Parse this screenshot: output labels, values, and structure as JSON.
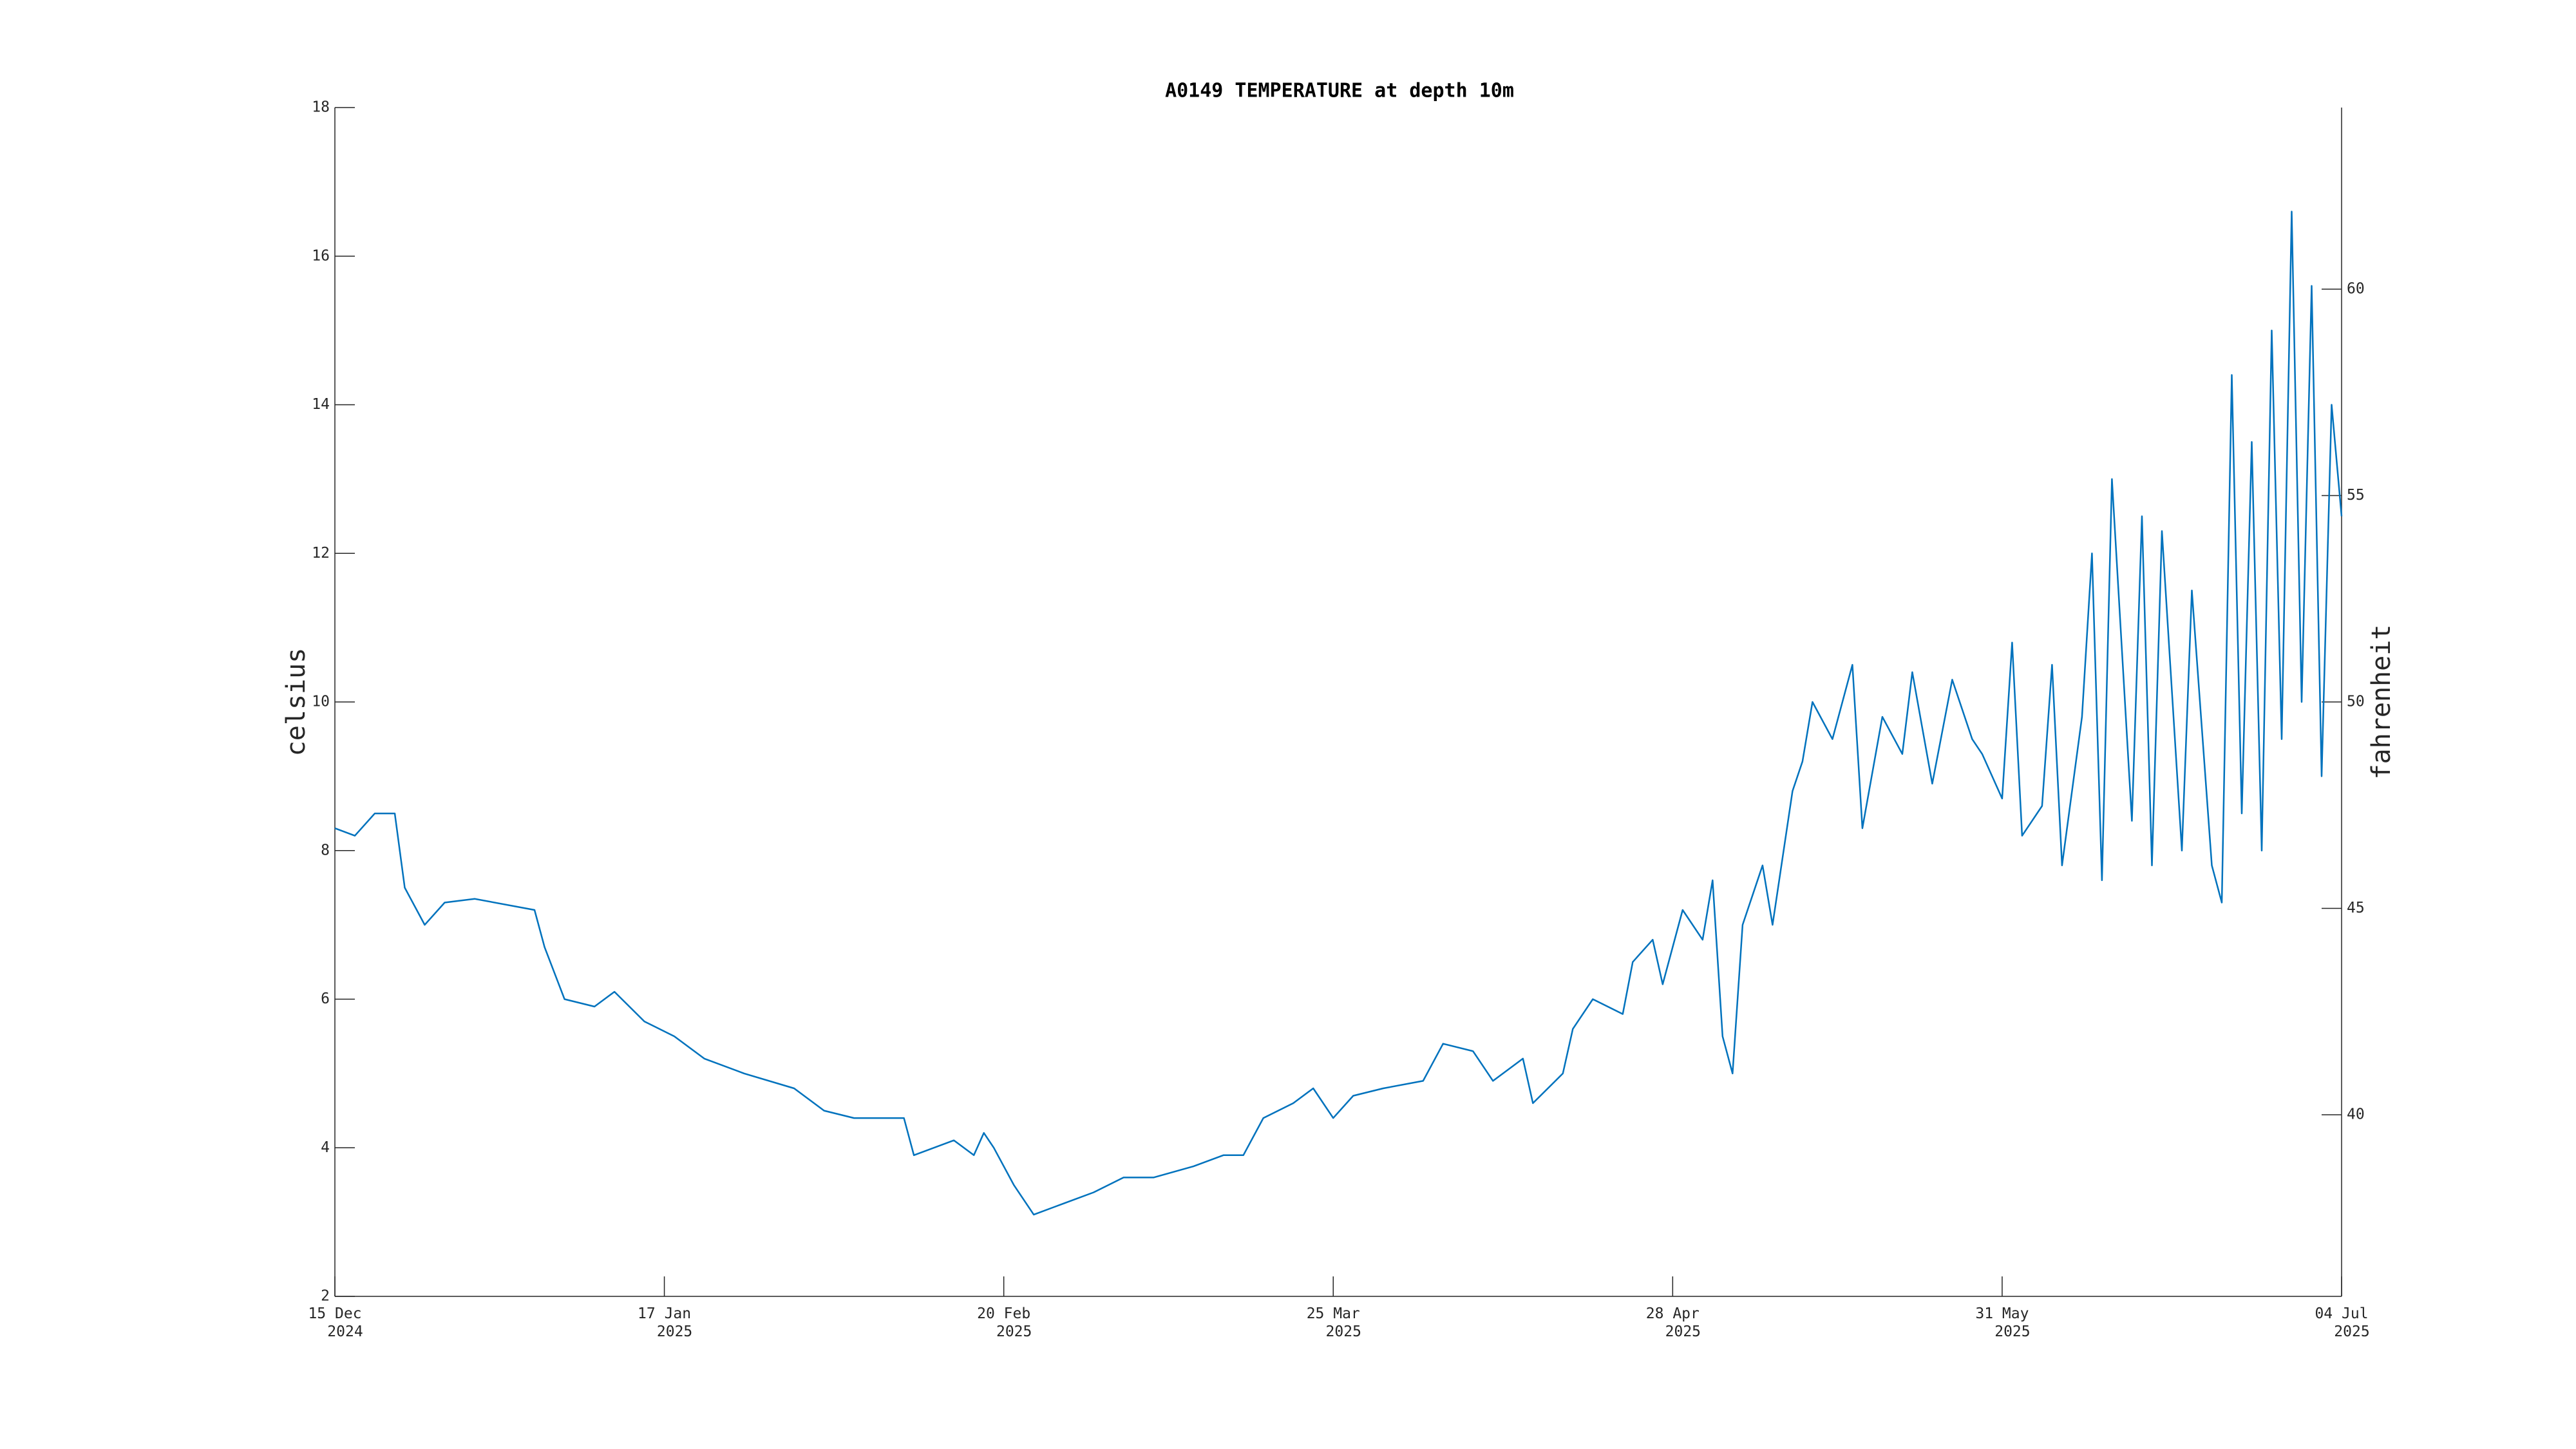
{
  "chart_data": {
    "type": "line",
    "title": "A0149 TEMPERATURE at depth 10m",
    "ylabel": "celsius",
    "y2label": "fahrenheit",
    "color": "#0072bd",
    "x": [
      "2024-12-15",
      "2024-12-17",
      "2024-12-19",
      "2024-12-21",
      "2024-12-22",
      "2024-12-24",
      "2024-12-26",
      "2024-12-29",
      "2025-01-04",
      "2025-01-05",
      "2025-01-07",
      "2025-01-10",
      "2025-01-12",
      "2025-01-15",
      "2025-01-18",
      "2025-01-21",
      "2025-01-25",
      "2025-01-30",
      "2025-02-02",
      "2025-02-05",
      "2025-02-10",
      "2025-02-11",
      "2025-02-15",
      "2025-02-17",
      "2025-02-18",
      "2025-02-19",
      "2025-02-21",
      "2025-02-23",
      "2025-02-25",
      "2025-03-01",
      "2025-03-04",
      "2025-03-07",
      "2025-03-11",
      "2025-03-14",
      "2025-03-16",
      "2025-03-18",
      "2025-03-21",
      "2025-03-23",
      "2025-03-25",
      "2025-03-27",
      "2025-03-30",
      "2025-04-03",
      "2025-04-05",
      "2025-04-08",
      "2025-04-10",
      "2025-04-13",
      "2025-04-14",
      "2025-04-17",
      "2025-04-18",
      "2025-04-20",
      "2025-04-23",
      "2025-04-24",
      "2025-04-26",
      "2025-04-27",
      "2025-04-29",
      "2025-05-01",
      "2025-05-02",
      "2025-05-03",
      "2025-05-04",
      "2025-05-05",
      "2025-05-07",
      "2025-05-08",
      "2025-05-10",
      "2025-05-11",
      "2025-05-12",
      "2025-05-14",
      "2025-05-16",
      "2025-05-17",
      "2025-05-19",
      "2025-05-21",
      "2025-05-22",
      "2025-05-24",
      "2025-05-25",
      "2025-05-26",
      "2025-05-28",
      "2025-05-29",
      "2025-05-31",
      "2025-06-01",
      "2025-06-02",
      "2025-06-04",
      "2025-06-05",
      "2025-06-06",
      "2025-06-08",
      "2025-06-09",
      "2025-06-10",
      "2025-06-11",
      "2025-06-13",
      "2025-06-14",
      "2025-06-15",
      "2025-06-16",
      "2025-06-18",
      "2025-06-19",
      "2025-06-21",
      "2025-06-22",
      "2025-06-23",
      "2025-06-24",
      "2025-06-25",
      "2025-06-26",
      "2025-06-27",
      "2025-06-28",
      "2025-06-29",
      "2025-06-30",
      "2025-07-01",
      "2025-07-02",
      "2025-07-03",
      "2025-07-04"
    ],
    "values": [
      8.3,
      8.2,
      8.5,
      8.5,
      7.5,
      7.0,
      7.3,
      7.35,
      7.2,
      6.7,
      6.0,
      5.9,
      6.1,
      5.7,
      5.5,
      5.2,
      5.0,
      4.8,
      4.5,
      4.4,
      4.4,
      3.9,
      4.1,
      3.9,
      4.2,
      4.0,
      3.5,
      3.1,
      3.2,
      3.4,
      3.6,
      3.6,
      3.75,
      3.9,
      3.9,
      4.4,
      4.6,
      4.8,
      4.4,
      4.7,
      4.8,
      4.9,
      5.4,
      5.3,
      4.9,
      5.2,
      4.6,
      5.0,
      5.6,
      6.0,
      5.8,
      6.5,
      6.8,
      6.2,
      7.2,
      6.8,
      7.6,
      5.5,
      5.0,
      7.0,
      7.8,
      7.0,
      8.8,
      9.2,
      10.0,
      9.5,
      10.5,
      8.3,
      9.8,
      9.3,
      10.4,
      8.9,
      9.6,
      10.3,
      9.5,
      9.3,
      8.7,
      10.8,
      8.2,
      8.6,
      10.5,
      7.8,
      9.8,
      12.0,
      7.6,
      13.0,
      8.4,
      12.5,
      7.8,
      12.3,
      8.0,
      11.5,
      7.8,
      7.3,
      14.4,
      8.5,
      13.5,
      8.0,
      15.0,
      9.5,
      16.6,
      10.0,
      15.6,
      9.0,
      14.0,
      12.5
    ],
    "xlim": [
      "2024-12-15",
      "2025-07-04"
    ],
    "xticks": [
      {
        "value": "2024-12-15",
        "label": [
          "15 Dec",
          "2024"
        ]
      },
      {
        "value": "2025-01-17",
        "label": [
          "17 Jan",
          "2025"
        ]
      },
      {
        "value": "2025-02-20",
        "label": [
          "20 Feb",
          "2025"
        ]
      },
      {
        "value": "2025-03-25",
        "label": [
          "25 Mar",
          "2025"
        ]
      },
      {
        "value": "2025-04-28",
        "label": [
          "28 Apr",
          "2025"
        ]
      },
      {
        "value": "2025-05-31",
        "label": [
          "31 May",
          "2025"
        ]
      },
      {
        "value": "2025-07-04",
        "label": [
          "04 Jul",
          "2025"
        ]
      }
    ],
    "ylim": [
      2,
      18
    ],
    "yticks": [
      2,
      4,
      6,
      8,
      10,
      12,
      14,
      16,
      18
    ],
    "y2lim": [
      35.6,
      64.4
    ],
    "y2ticks": [
      40,
      45,
      50,
      55,
      60
    ],
    "grid": false
  }
}
